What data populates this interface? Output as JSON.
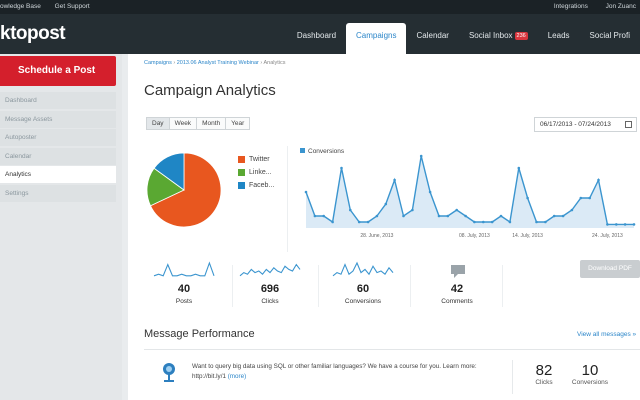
{
  "topbar": {
    "left_links": [
      "owledge Base",
      "Get Support"
    ],
    "right_links": [
      "Integrations",
      "Jon Zuanc"
    ]
  },
  "header": {
    "logo": "ktopost",
    "nav": [
      {
        "label": "Dashboard"
      },
      {
        "label": "Campaigns",
        "active": true
      },
      {
        "label": "Calendar"
      },
      {
        "label": "Social Inbox",
        "badge": "236"
      },
      {
        "label": "Leads"
      },
      {
        "label": "Social Profi"
      }
    ]
  },
  "sidebar": {
    "schedule_label": "Schedule a Post",
    "items": [
      {
        "label": "Dashboard"
      },
      {
        "label": "Message Assets"
      },
      {
        "label": "Autoposter"
      },
      {
        "label": "Calendar"
      },
      {
        "label": "Analytics",
        "active": true
      },
      {
        "label": "Settings"
      }
    ]
  },
  "main": {
    "breadcrumb": {
      "a": "Campaigns",
      "b": "2013.06 Analyst Training Webinar",
      "current": "Analytics",
      "sep": "›"
    },
    "title": "Campaign Analytics",
    "range_buttons": [
      {
        "label": "Day",
        "active": true
      },
      {
        "label": "Week"
      },
      {
        "label": "Month"
      },
      {
        "label": "Year"
      }
    ],
    "date_range": "06/17/2013 - 07/24/2013",
    "legend": [
      {
        "label": "Twitter",
        "color": "#e8571f"
      },
      {
        "label": "Linke...",
        "color": "#5aa832"
      },
      {
        "label": "Faceb...",
        "color": "#1f86c5"
      }
    ],
    "stats": [
      {
        "value": "40",
        "label": "Posts"
      },
      {
        "value": "696",
        "label": "Clicks"
      },
      {
        "value": "60",
        "label": "Conversions"
      },
      {
        "value": "42",
        "label": "Comments"
      }
    ],
    "download_label": "Download PDF",
    "section_title": "Message Performance",
    "view_all": "View all messages »",
    "message": {
      "text": "Want to query big data using SQL or other familiar languages? We have a course for you. Learn more:",
      "link": "http://bit.ly/1",
      "more": "(more)",
      "clicks_value": "82",
      "clicks_label": "Clicks",
      "conversions_value": "10",
      "conversions_label": "Conversions"
    }
  },
  "chart_data": [
    {
      "type": "pie",
      "labels": [
        "Twitter",
        "Linke...",
        "Faceb..."
      ],
      "values": [
        68,
        17,
        15
      ],
      "colors": [
        "#e8571f",
        "#5aa832",
        "#1f86c5"
      ]
    },
    {
      "type": "area",
      "series": [
        {
          "name": "Conversions",
          "color": "#3b95cf",
          "values": [
            3,
            1,
            1,
            0.5,
            5,
            1.5,
            0.5,
            0.5,
            1,
            2,
            4,
            1,
            1.5,
            6,
            3,
            1,
            1,
            1.5,
            1,
            0.5,
            0.5,
            0.5,
            1,
            0.5,
            5,
            2.5,
            0.5,
            0.5,
            1,
            1,
            1.5,
            2.5,
            2.5,
            4,
            0.3,
            0.3,
            0.3,
            0.3
          ]
        }
      ],
      "x_ticks": [
        "28. June, 2013",
        "08. July, 2013",
        "14. July, 2013",
        "24. July, 2013"
      ],
      "x_tick_index": [
        8,
        19,
        25,
        34
      ],
      "ylim": [
        0,
        6.5
      ],
      "legend": "top-left",
      "grid": false
    }
  ],
  "sparklines": {
    "posts": [
      0.2,
      0.3,
      0.2,
      0.9,
      0.2,
      0.2,
      0.3,
      0.2,
      0.2,
      0.3,
      0.2,
      0.2,
      1,
      0.2
    ],
    "clicks": [
      0.2,
      0.4,
      0.3,
      0.6,
      0.4,
      0.5,
      0.3,
      0.6,
      0.4,
      0.7,
      0.5,
      0.4,
      0.8,
      0.6,
      0.5,
      0.9,
      0.6
    ],
    "conversions": [
      0.2,
      0.4,
      0.3,
      0.9,
      0.3,
      0.5,
      1,
      0.4,
      0.6,
      0.3,
      0.8,
      0.4,
      0.5,
      0.3,
      0.7,
      0.4
    ],
    "color": "#3b95cf"
  }
}
